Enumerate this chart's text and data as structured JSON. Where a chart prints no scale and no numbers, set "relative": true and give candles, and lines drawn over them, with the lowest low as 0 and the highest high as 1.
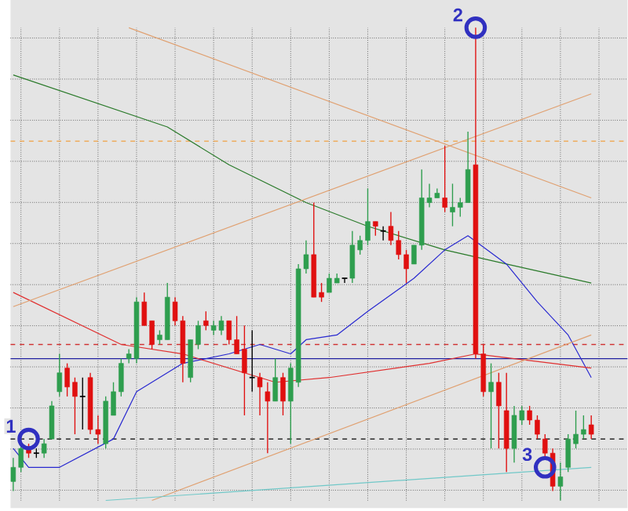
{
  "chart_data": {
    "type": "candlestick",
    "relative": true,
    "grid": true,
    "categories": [
      null,
      null,
      null,
      null,
      null,
      null,
      null,
      null,
      null,
      null,
      null,
      null,
      null,
      null,
      null,
      null,
      null,
      null,
      null,
      null,
      null,
      null,
      null,
      null,
      null,
      null,
      null,
      null,
      null,
      null,
      null,
      null,
      null,
      null,
      null,
      null,
      null,
      null,
      null,
      null,
      null,
      null,
      null,
      null,
      null,
      null,
      null,
      null,
      null,
      null,
      null,
      null,
      null,
      null,
      null,
      null,
      null,
      null,
      null,
      null,
      null,
      null,
      null,
      null,
      null,
      null,
      null,
      null,
      null,
      null,
      null,
      null,
      null,
      null,
      null,
      null
    ],
    "ohlc": [
      [
        0.04,
        0.09,
        0.02,
        0.07
      ],
      [
        0.07,
        0.12,
        0.06,
        0.11
      ],
      [
        0.11,
        0.12,
        0.09,
        0.1
      ],
      [
        0.1,
        0.11,
        0.09,
        0.1
      ],
      [
        0.1,
        0.13,
        0.09,
        0.12
      ],
      [
        0.13,
        0.21,
        0.13,
        0.2
      ],
      [
        0.23,
        0.31,
        0.22,
        0.27
      ],
      [
        0.28,
        0.29,
        0.22,
        0.24
      ],
      [
        0.25,
        0.26,
        0.14,
        0.22
      ],
      [
        0.22,
        0.26,
        0.15,
        0.22
      ],
      [
        0.26,
        0.27,
        0.14,
        0.15
      ],
      [
        0.15,
        0.18,
        0.12,
        0.14
      ],
      [
        0.12,
        0.22,
        0.11,
        0.21
      ],
      [
        0.18,
        0.25,
        0.18,
        0.23
      ],
      [
        0.23,
        0.3,
        0.22,
        0.29
      ],
      [
        0.3,
        0.32,
        0.29,
        0.31
      ],
      [
        0.3,
        0.43,
        0.29,
        0.42
      ],
      [
        0.42,
        0.44,
        0.37,
        0.37
      ],
      [
        0.38,
        0.38,
        0.32,
        0.33
      ],
      [
        0.34,
        0.36,
        0.33,
        0.35
      ],
      [
        0.34,
        0.46,
        0.34,
        0.43
      ],
      [
        0.42,
        0.43,
        0.37,
        0.38
      ],
      [
        0.38,
        0.39,
        0.25,
        0.29
      ],
      [
        0.26,
        0.34,
        0.25,
        0.34
      ],
      [
        0.33,
        0.38,
        0.32,
        0.37
      ],
      [
        0.38,
        0.4,
        0.36,
        0.37
      ],
      [
        0.36,
        0.38,
        0.35,
        0.37
      ],
      [
        0.36,
        0.39,
        0.35,
        0.38
      ],
      [
        0.38,
        0.38,
        0.33,
        0.34
      ],
      [
        0.34,
        0.39,
        0.31,
        0.31
      ],
      [
        0.32,
        0.37,
        0.18,
        0.27
      ],
      [
        0.26,
        0.36,
        0.23,
        0.26
      ],
      [
        0.26,
        0.27,
        0.18,
        0.24
      ],
      [
        0.23,
        0.25,
        0.1,
        0.21
      ],
      [
        0.21,
        0.3,
        0.21,
        0.26
      ],
      [
        0.26,
        0.27,
        0.18,
        0.21
      ],
      [
        0.21,
        0.29,
        0.12,
        0.28
      ],
      [
        0.25,
        0.5,
        0.24,
        0.49
      ],
      [
        0.49,
        0.55,
        0.48,
        0.52
      ],
      [
        0.52,
        0.63,
        0.43,
        0.43
      ],
      [
        0.44,
        0.46,
        0.42,
        0.43
      ],
      [
        0.44,
        0.48,
        0.44,
        0.47
      ],
      [
        0.46,
        0.48,
        0.46,
        0.47
      ],
      [
        0.47,
        0.47,
        0.46,
        0.47
      ],
      [
        0.47,
        0.57,
        0.46,
        0.54
      ],
      [
        0.53,
        0.56,
        0.52,
        0.55
      ],
      [
        0.55,
        0.66,
        0.54,
        0.59
      ],
      [
        0.59,
        0.59,
        0.56,
        0.58
      ],
      [
        0.57,
        0.58,
        0.55,
        0.57
      ],
      [
        0.58,
        0.61,
        0.54,
        0.55
      ],
      [
        0.55,
        0.57,
        0.51,
        0.52
      ],
      [
        0.52,
        0.53,
        0.46,
        0.49
      ],
      [
        0.5,
        0.54,
        0.5,
        0.54
      ],
      [
        0.54,
        0.7,
        0.53,
        0.64
      ],
      [
        0.63,
        0.67,
        0.62,
        0.64
      ],
      [
        0.64,
        0.66,
        0.64,
        0.65
      ],
      [
        0.64,
        0.75,
        0.61,
        0.62
      ],
      [
        0.61,
        0.67,
        0.58,
        0.62
      ],
      [
        0.62,
        0.64,
        0.6,
        0.63
      ],
      [
        0.63,
        0.78,
        0.63,
        0.7
      ],
      [
        0.71,
        1.0,
        0.3,
        0.31
      ],
      [
        0.31,
        0.33,
        0.22,
        0.23
      ],
      [
        0.23,
        0.29,
        0.11,
        0.25
      ],
      [
        0.25,
        0.27,
        0.11,
        0.2
      ],
      [
        0.19,
        0.27,
        0.06,
        0.11
      ],
      [
        0.11,
        0.2,
        0.08,
        0.18
      ],
      [
        0.17,
        0.2,
        0.16,
        0.19
      ],
      [
        0.19,
        0.2,
        0.16,
        0.17
      ],
      [
        0.17,
        0.18,
        0.13,
        0.14
      ],
      [
        0.13,
        0.14,
        0.09,
        0.1
      ],
      [
        0.1,
        0.11,
        0.02,
        0.03
      ],
      [
        0.03,
        0.08,
        0.0,
        0.05
      ],
      [
        0.07,
        0.14,
        0.06,
        0.13
      ],
      [
        0.12,
        0.19,
        0.11,
        0.14
      ],
      [
        0.14,
        0.18,
        0.13,
        0.15
      ],
      [
        0.16,
        0.18,
        0.13,
        0.14
      ]
    ],
    "colors": [
      "#2e9e4e",
      "#2e9e4e",
      "#e01010",
      "#000000",
      "#2e9e4e",
      "#2e9e4e",
      "#2e9e4e",
      "#e01010",
      "#e01010",
      "#000000",
      "#e01010",
      "#e01010",
      "#2e9e4e",
      "#2e9e4e",
      "#2e9e4e",
      "#2e9e4e",
      "#2e9e4e",
      "#e01010",
      "#e01010",
      "#2e9e4e",
      "#2e9e4e",
      "#e01010",
      "#e01010",
      "#2e9e4e",
      "#2e9e4e",
      "#e01010",
      "#2e9e4e",
      "#2e9e4e",
      "#e01010",
      "#e01010",
      "#e01010",
      "#000000",
      "#e01010",
      "#e01010",
      "#2e9e4e",
      "#e01010",
      "#2e9e4e",
      "#2e9e4e",
      "#2e9e4e",
      "#e01010",
      "#e01010",
      "#2e9e4e",
      "#2e9e4e",
      "#000000",
      "#2e9e4e",
      "#2e9e4e",
      "#2e9e4e",
      "#e01010",
      "#000000",
      "#e01010",
      "#e01010",
      "#e01010",
      "#2e9e4e",
      "#2e9e4e",
      "#2e9e4e",
      "#2e9e4e",
      "#e01010",
      "#2e9e4e",
      "#2e9e4e",
      "#2e9e4e",
      "#e01010",
      "#e01010",
      "#2e9e4e",
      "#e01010",
      "#e01010",
      "#2e9e4e",
      "#2e9e4e",
      "#e01010",
      "#e01010",
      "#e01010",
      "#e01010",
      "#2e9e4e",
      "#2e9e4e",
      "#2e9e4e",
      "#2e9e4e",
      "#e01010"
    ],
    "series": [
      {
        "type": "line",
        "color": "#2a7a2a",
        "values": [
          0.9,
          null,
          null,
          null,
          null,
          null,
          null,
          null,
          null,
          null,
          null,
          null,
          null,
          null,
          null,
          null,
          null,
          null,
          null,
          null,
          0.79,
          null,
          null,
          null,
          null,
          null,
          null,
          null,
          0.71,
          null,
          null,
          null,
          null,
          null,
          null,
          null,
          null,
          null,
          0.63,
          null,
          null,
          null,
          null,
          null,
          null,
          null,
          0.58,
          null,
          null,
          null,
          null,
          null,
          null,
          null,
          null,
          null,
          0.53,
          null,
          null,
          null,
          null,
          null,
          null,
          null,
          0.5,
          null,
          null,
          null,
          null,
          null,
          null,
          null,
          null,
          null,
          null,
          0.46
        ]
      },
      {
        "type": "line",
        "color": "#2828d0",
        "values": [
          0.11,
          null,
          0.07,
          null,
          null,
          null,
          0.07,
          null,
          null,
          null,
          null,
          null,
          null,
          0.13,
          null,
          null,
          0.23,
          null,
          null,
          null,
          null,
          null,
          0.29,
          null,
          null,
          null,
          null,
          null,
          0.31,
          null,
          null,
          null,
          0.33,
          null,
          null,
          null,
          0.31,
          null,
          0.34,
          null,
          null,
          null,
          0.35,
          null,
          null,
          null,
          0.4,
          null,
          null,
          null,
          null,
          null,
          0.47,
          null,
          null,
          null,
          0.53,
          null,
          null,
          0.56,
          null,
          null,
          null,
          null,
          0.5,
          null,
          null,
          null,
          0.42,
          null,
          null,
          null,
          0.35,
          null,
          null,
          0.26
        ]
      },
      {
        "type": "line",
        "color": "#e03030",
        "values": [
          0.44,
          null,
          null,
          null,
          null,
          null,
          null,
          null,
          null,
          null,
          null,
          null,
          null,
          null,
          0.33,
          null,
          null,
          null,
          null,
          null,
          null,
          null,
          0.31,
          null,
          null,
          null,
          null,
          null,
          0.28,
          null,
          null,
          null,
          null,
          null,
          0.25,
          null,
          null,
          null,
          null,
          null,
          null,
          0.26,
          null,
          null,
          null,
          null,
          null,
          null,
          null,
          null,
          null,
          null,
          null,
          null,
          0.29,
          null,
          null,
          null,
          null,
          null,
          0.31,
          null,
          null,
          null,
          null,
          0.3,
          null,
          null,
          null,
          null,
          null,
          null,
          null,
          null,
          null,
          0.28
        ]
      },
      {
        "type": "line",
        "color": "#e0a070",
        "values": [
          null,
          null,
          null,
          null,
          null,
          null,
          null,
          null,
          null,
          null,
          null,
          null,
          null,
          null,
          null,
          1.0,
          null,
          null,
          null,
          null,
          null,
          null,
          null,
          null,
          null,
          null,
          null,
          null,
          null,
          null,
          null,
          null,
          null,
          null,
          null,
          null,
          null,
          null,
          null,
          null,
          null,
          null,
          null,
          null,
          null,
          null,
          null,
          null,
          null,
          null,
          null,
          null,
          null,
          null,
          null,
          null,
          null,
          null,
          null,
          null,
          null,
          null,
          null,
          null,
          null,
          null,
          null,
          null,
          null,
          null,
          null,
          null,
          null,
          null,
          null,
          0.64
        ]
      },
      {
        "type": "line",
        "color": "#e0a070",
        "values": [
          0.41,
          null,
          null,
          null,
          null,
          null,
          null,
          null,
          null,
          null,
          null,
          null,
          null,
          null,
          null,
          null,
          null,
          null,
          null,
          null,
          null,
          null,
          null,
          null,
          null,
          null,
          null,
          null,
          null,
          null,
          null,
          null,
          null,
          null,
          null,
          null,
          null,
          null,
          null,
          null,
          null,
          null,
          null,
          null,
          null,
          null,
          null,
          null,
          null,
          null,
          null,
          null,
          null,
          null,
          null,
          null,
          null,
          null,
          null,
          null,
          null,
          null,
          null,
          null,
          null,
          null,
          null,
          null,
          null,
          null,
          null,
          null,
          null,
          null,
          null,
          0.86
        ]
      },
      {
        "type": "line",
        "color": "#e0a070",
        "values": [
          null,
          null,
          null,
          null,
          null,
          null,
          null,
          null,
          null,
          null,
          null,
          null,
          null,
          null,
          null,
          null,
          null,
          null,
          0.0,
          null,
          null,
          null,
          null,
          null,
          null,
          null,
          null,
          null,
          null,
          null,
          null,
          null,
          null,
          null,
          null,
          null,
          null,
          null,
          null,
          null,
          null,
          null,
          null,
          null,
          null,
          null,
          null,
          null,
          null,
          null,
          null,
          null,
          null,
          null,
          null,
          null,
          null,
          null,
          null,
          null,
          null,
          null,
          null,
          null,
          null,
          null,
          null,
          null,
          null,
          null,
          null,
          null,
          null,
          null,
          null,
          0.35
        ]
      },
      {
        "type": "line",
        "color": "#70c8c8",
        "values": [
          null,
          null,
          null,
          null,
          null,
          null,
          null,
          null,
          null,
          null,
          null,
          null,
          0.0,
          null,
          null,
          null,
          null,
          null,
          null,
          null,
          null,
          null,
          null,
          null,
          null,
          null,
          null,
          null,
          null,
          null,
          null,
          null,
          null,
          null,
          null,
          null,
          null,
          null,
          null,
          null,
          null,
          null,
          null,
          null,
          null,
          null,
          null,
          null,
          null,
          null,
          null,
          null,
          null,
          null,
          null,
          null,
          null,
          null,
          null,
          null,
          null,
          null,
          null,
          null,
          null,
          null,
          null,
          null,
          null,
          null,
          null,
          null,
          null,
          null,
          null,
          0.07
        ]
      },
      {
        "type": "scatter",
        "marker": "circle",
        "color": "#3030c0",
        "values": [
          null,
          null,
          0.13,
          null,
          null,
          null,
          null,
          null,
          null,
          null,
          null,
          null,
          null,
          null,
          null,
          null,
          null,
          null,
          null,
          null,
          null,
          null,
          null,
          null,
          null,
          null,
          null,
          null,
          null,
          null,
          null,
          null,
          null,
          null,
          null,
          null,
          null,
          null,
          null,
          null,
          null,
          null,
          null,
          null,
          null,
          null,
          null,
          null,
          null,
          null,
          null,
          null,
          null,
          null,
          null,
          null,
          null,
          null,
          null,
          null,
          1.0,
          null,
          null,
          null,
          null,
          null,
          null,
          null,
          null,
          0.07,
          null,
          null,
          null,
          null,
          null,
          null
        ]
      }
    ],
    "annotations": [
      "1",
      "2",
      "3"
    ],
    "ref_lines": [
      {
        "axis": "y",
        "value": 0.76,
        "color": "#f0a040",
        "line_style": "dashed"
      },
      {
        "axis": "y",
        "value": 0.33,
        "color": "#d03030",
        "line_style": "dashed"
      },
      {
        "axis": "y",
        "value": 0.3,
        "color": "#2020a0",
        "line_style": "solid"
      },
      {
        "axis": "y",
        "value": 0.13,
        "color": "#000000",
        "line_style": "dashed"
      }
    ]
  }
}
